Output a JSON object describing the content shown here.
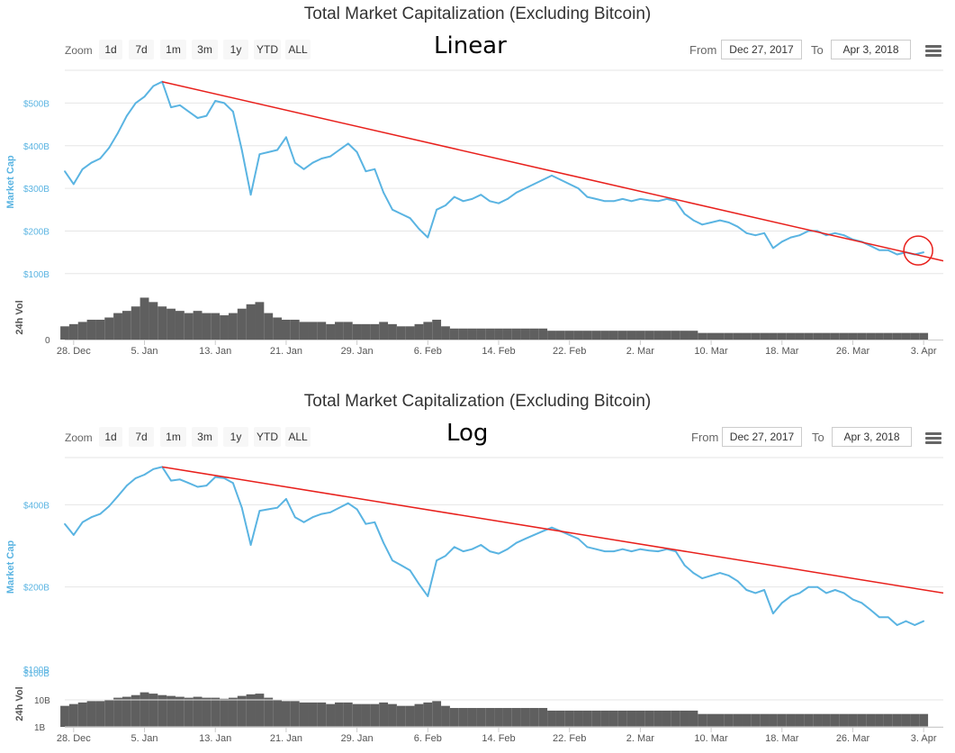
{
  "colors": {
    "line": "#5ab4e2",
    "trend": "#e8201c",
    "volume": "#5f5f5f",
    "grid": "#e6e6e6",
    "axis_text": "#555555"
  },
  "toolbar": {
    "zoom_label": "Zoom",
    "zoom_buttons": [
      "1d",
      "7d",
      "1m",
      "3m",
      "1y",
      "YTD",
      "ALL"
    ],
    "from_label": "From",
    "from_value": "Dec 27, 2017",
    "to_label": "To",
    "to_value": "Apr 3, 2018",
    "menu_icon": "hamburger-menu-icon"
  },
  "chart_data": [
    {
      "type": "line",
      "title": "Total Market Capitalization (Excluding Bitcoin)",
      "annotation": "Linear",
      "scale": "linear",
      "ylabel": "Market Cap",
      "ylim": [
        70,
        560
      ],
      "yticks": [
        {
          "value": 100,
          "label": "$100B"
        },
        {
          "value": 200,
          "label": "$200B"
        },
        {
          "value": 300,
          "label": "$300B"
        },
        {
          "value": 400,
          "label": "$400B"
        },
        {
          "value": 500,
          "label": "$500B"
        }
      ],
      "xlim": [
        "2017-12-27",
        "2018-04-04"
      ],
      "xticks": [
        {
          "date": "2017-12-28",
          "label": "28. Dec"
        },
        {
          "date": "2018-01-05",
          "label": "5. Jan"
        },
        {
          "date": "2018-01-13",
          "label": "13. Jan"
        },
        {
          "date": "2018-01-21",
          "label": "21. Jan"
        },
        {
          "date": "2018-01-29",
          "label": "29. Jan"
        },
        {
          "date": "2018-02-06",
          "label": "6. Feb"
        },
        {
          "date": "2018-02-14",
          "label": "14. Feb"
        },
        {
          "date": "2018-02-22",
          "label": "22. Feb"
        },
        {
          "date": "2018-03-02",
          "label": "2. Mar"
        },
        {
          "date": "2018-03-10",
          "label": "10. Mar"
        },
        {
          "date": "2018-03-18",
          "label": "18. Mar"
        },
        {
          "date": "2018-03-26",
          "label": "26. Mar"
        },
        {
          "date": "2018-04-03",
          "label": "3. Apr"
        }
      ],
      "series": [
        {
          "name": "Market Cap",
          "unit": "USD billions",
          "x": [
            "2017-12-27",
            "2017-12-28",
            "2017-12-29",
            "2017-12-30",
            "2017-12-31",
            "2018-01-01",
            "2018-01-02",
            "2018-01-03",
            "2018-01-04",
            "2018-01-05",
            "2018-01-06",
            "2018-01-07",
            "2018-01-08",
            "2018-01-09",
            "2018-01-10",
            "2018-01-11",
            "2018-01-12",
            "2018-01-13",
            "2018-01-14",
            "2018-01-15",
            "2018-01-16",
            "2018-01-17",
            "2018-01-18",
            "2018-01-19",
            "2018-01-20",
            "2018-01-21",
            "2018-01-22",
            "2018-01-23",
            "2018-01-24",
            "2018-01-25",
            "2018-01-26",
            "2018-01-27",
            "2018-01-28",
            "2018-01-29",
            "2018-01-30",
            "2018-01-31",
            "2018-02-01",
            "2018-02-02",
            "2018-02-03",
            "2018-02-04",
            "2018-02-05",
            "2018-02-06",
            "2018-02-07",
            "2018-02-08",
            "2018-02-09",
            "2018-02-10",
            "2018-02-11",
            "2018-02-12",
            "2018-02-13",
            "2018-02-14",
            "2018-02-15",
            "2018-02-16",
            "2018-02-17",
            "2018-02-18",
            "2018-02-19",
            "2018-02-20",
            "2018-02-21",
            "2018-02-22",
            "2018-02-23",
            "2018-02-24",
            "2018-02-25",
            "2018-02-26",
            "2018-02-27",
            "2018-02-28",
            "2018-03-01",
            "2018-03-02",
            "2018-03-03",
            "2018-03-04",
            "2018-03-05",
            "2018-03-06",
            "2018-03-07",
            "2018-03-08",
            "2018-03-09",
            "2018-03-10",
            "2018-03-11",
            "2018-03-12",
            "2018-03-13",
            "2018-03-14",
            "2018-03-15",
            "2018-03-16",
            "2018-03-17",
            "2018-03-18",
            "2018-03-19",
            "2018-03-20",
            "2018-03-21",
            "2018-03-22",
            "2018-03-23",
            "2018-03-24",
            "2018-03-25",
            "2018-03-26",
            "2018-03-27",
            "2018-03-28",
            "2018-03-29",
            "2018-03-30",
            "2018-03-31",
            "2018-04-01",
            "2018-04-02",
            "2018-04-03"
          ],
          "values": [
            340,
            310,
            345,
            360,
            370,
            395,
            430,
            470,
            500,
            515,
            540,
            550,
            490,
            495,
            480,
            465,
            470,
            505,
            500,
            480,
            390,
            285,
            380,
            385,
            390,
            420,
            360,
            345,
            360,
            370,
            375,
            390,
            405,
            385,
            340,
            345,
            290,
            250,
            240,
            230,
            205,
            185,
            250,
            260,
            280,
            270,
            275,
            285,
            270,
            265,
            275,
            290,
            300,
            310,
            320,
            330,
            320,
            310,
            300,
            280,
            275,
            270,
            270,
            275,
            270,
            275,
            272,
            270,
            275,
            270,
            240,
            225,
            215,
            220,
            225,
            220,
            210,
            195,
            190,
            195,
            160,
            175,
            185,
            190,
            200,
            200,
            190,
            195,
            190,
            180,
            175,
            165,
            155,
            155,
            145,
            150,
            145,
            150
          ]
        }
      ],
      "trendline": {
        "start": {
          "date": "2018-01-07",
          "value": 550
        },
        "end": {
          "date": "2018-04-04",
          "value": 130
        }
      },
      "circle_marker": {
        "date": "2018-04-03",
        "value": 150
      },
      "volume": {
        "label": "24h Vol",
        "yticks": [
          {
            "value": 0,
            "label": "0"
          }
        ],
        "ymax": 20,
        "values": [
          6,
          7,
          8,
          9,
          9,
          10,
          12,
          13,
          15,
          19,
          17,
          15,
          14,
          13,
          12,
          13,
          12,
          12,
          11,
          12,
          14,
          16,
          17,
          12,
          10,
          9,
          9,
          8,
          8,
          8,
          7,
          8,
          8,
          7,
          7,
          7,
          8,
          7,
          6,
          6,
          7,
          8,
          9,
          6,
          5,
          5,
          5,
          5,
          5,
          5,
          5,
          5,
          5,
          5,
          5,
          4,
          4,
          4,
          4,
          4,
          4,
          4,
          4,
          4,
          4,
          4,
          4,
          4,
          4,
          4,
          4,
          4,
          3,
          3,
          3,
          3,
          3,
          3,
          3,
          3,
          3,
          3,
          3,
          3,
          3,
          3,
          3,
          3,
          3,
          3,
          3,
          3,
          3,
          3,
          3,
          3,
          3,
          3
        ]
      }
    },
    {
      "type": "line",
      "title": "Total Market Capitalization (Excluding Bitcoin)",
      "annotation": "Log",
      "scale": "log",
      "ylabel": "Market Cap",
      "ylim": [
        100,
        560
      ],
      "yticks": [
        {
          "value": 100,
          "label": "$100B"
        },
        {
          "value": 200,
          "label": "$200B"
        },
        {
          "value": 400,
          "label": "$400B"
        }
      ],
      "xlim": [
        "2017-12-27",
        "2018-04-04"
      ],
      "xticks": [
        {
          "date": "2017-12-28",
          "label": "28. Dec"
        },
        {
          "date": "2018-01-05",
          "label": "5. Jan"
        },
        {
          "date": "2018-01-13",
          "label": "13. Jan"
        },
        {
          "date": "2018-01-21",
          "label": "21. Jan"
        },
        {
          "date": "2018-01-29",
          "label": "29. Jan"
        },
        {
          "date": "2018-02-06",
          "label": "6. Feb"
        },
        {
          "date": "2018-02-14",
          "label": "14. Feb"
        },
        {
          "date": "2018-02-22",
          "label": "22. Feb"
        },
        {
          "date": "2018-03-02",
          "label": "2. Mar"
        },
        {
          "date": "2018-03-10",
          "label": "10. Mar"
        },
        {
          "date": "2018-03-18",
          "label": "18. Mar"
        },
        {
          "date": "2018-03-26",
          "label": "26. Mar"
        },
        {
          "date": "2018-04-03",
          "label": "3. Apr"
        }
      ],
      "series": [
        {
          "name": "Market Cap",
          "unit": "USD billions",
          "x": [
            "2017-12-27",
            "2017-12-28",
            "2017-12-29",
            "2017-12-30",
            "2017-12-31",
            "2018-01-01",
            "2018-01-02",
            "2018-01-03",
            "2018-01-04",
            "2018-01-05",
            "2018-01-06",
            "2018-01-07",
            "2018-01-08",
            "2018-01-09",
            "2018-01-10",
            "2018-01-11",
            "2018-01-12",
            "2018-01-13",
            "2018-01-14",
            "2018-01-15",
            "2018-01-16",
            "2018-01-17",
            "2018-01-18",
            "2018-01-19",
            "2018-01-20",
            "2018-01-21",
            "2018-01-22",
            "2018-01-23",
            "2018-01-24",
            "2018-01-25",
            "2018-01-26",
            "2018-01-27",
            "2018-01-28",
            "2018-01-29",
            "2018-01-30",
            "2018-01-31",
            "2018-02-01",
            "2018-02-02",
            "2018-02-03",
            "2018-02-04",
            "2018-02-05",
            "2018-02-06",
            "2018-02-07",
            "2018-02-08",
            "2018-02-09",
            "2018-02-10",
            "2018-02-11",
            "2018-02-12",
            "2018-02-13",
            "2018-02-14",
            "2018-02-15",
            "2018-02-16",
            "2018-02-17",
            "2018-02-18",
            "2018-02-19",
            "2018-02-20",
            "2018-02-21",
            "2018-02-22",
            "2018-02-23",
            "2018-02-24",
            "2018-02-25",
            "2018-02-26",
            "2018-02-27",
            "2018-02-28",
            "2018-03-01",
            "2018-03-02",
            "2018-03-03",
            "2018-03-04",
            "2018-03-05",
            "2018-03-06",
            "2018-03-07",
            "2018-03-08",
            "2018-03-09",
            "2018-03-10",
            "2018-03-11",
            "2018-03-12",
            "2018-03-13",
            "2018-03-14",
            "2018-03-15",
            "2018-03-16",
            "2018-03-17",
            "2018-03-18",
            "2018-03-19",
            "2018-03-20",
            "2018-03-21",
            "2018-03-22",
            "2018-03-23",
            "2018-03-24",
            "2018-03-25",
            "2018-03-26",
            "2018-03-27",
            "2018-03-28",
            "2018-03-29",
            "2018-03-30",
            "2018-03-31",
            "2018-04-01",
            "2018-04-02",
            "2018-04-03"
          ],
          "values": [
            340,
            310,
            345,
            360,
            370,
            395,
            430,
            470,
            500,
            515,
            540,
            550,
            490,
            495,
            480,
            465,
            470,
            505,
            500,
            480,
            390,
            285,
            380,
            385,
            390,
            420,
            360,
            345,
            360,
            370,
            375,
            390,
            405,
            385,
            340,
            345,
            290,
            250,
            240,
            230,
            205,
            185,
            250,
            260,
            280,
            270,
            275,
            285,
            270,
            265,
            275,
            290,
            300,
            310,
            320,
            330,
            320,
            310,
            300,
            280,
            275,
            270,
            270,
            275,
            270,
            275,
            272,
            270,
            275,
            270,
            240,
            225,
            215,
            220,
            225,
            220,
            210,
            195,
            190,
            195,
            160,
            175,
            185,
            190,
            200,
            200,
            190,
            195,
            190,
            180,
            175,
            165,
            155,
            155,
            145,
            150,
            145,
            150
          ]
        }
      ],
      "trendline": {
        "start": {
          "date": "2018-01-07",
          "value": 550
        },
        "end": {
          "date": "2018-04-04",
          "value": 190
        }
      },
      "volume": {
        "label": "24h Vol",
        "scale": "log",
        "ylim_log10": [
          0,
          1.7
        ],
        "yticks": [
          {
            "value": 1,
            "label": "1B"
          },
          {
            "value": 10,
            "label": "10B"
          },
          {
            "value": 100,
            "label": "$100B"
          }
        ],
        "values": [
          6,
          7,
          8,
          9,
          9,
          10,
          12,
          13,
          15,
          19,
          17,
          15,
          14,
          13,
          12,
          13,
          12,
          12,
          11,
          12,
          14,
          16,
          17,
          12,
          10,
          9,
          9,
          8,
          8,
          8,
          7,
          8,
          8,
          7,
          7,
          7,
          8,
          7,
          6,
          6,
          7,
          8,
          9,
          6,
          5,
          5,
          5,
          5,
          5,
          5,
          5,
          5,
          5,
          5,
          5,
          4,
          4,
          4,
          4,
          4,
          4,
          4,
          4,
          4,
          4,
          4,
          4,
          4,
          4,
          4,
          4,
          4,
          3,
          3,
          3,
          3,
          3,
          3,
          3,
          3,
          3,
          3,
          3,
          3,
          3,
          3,
          3,
          3,
          3,
          3,
          3,
          3,
          3,
          3,
          3,
          3,
          3,
          3
        ]
      }
    }
  ]
}
